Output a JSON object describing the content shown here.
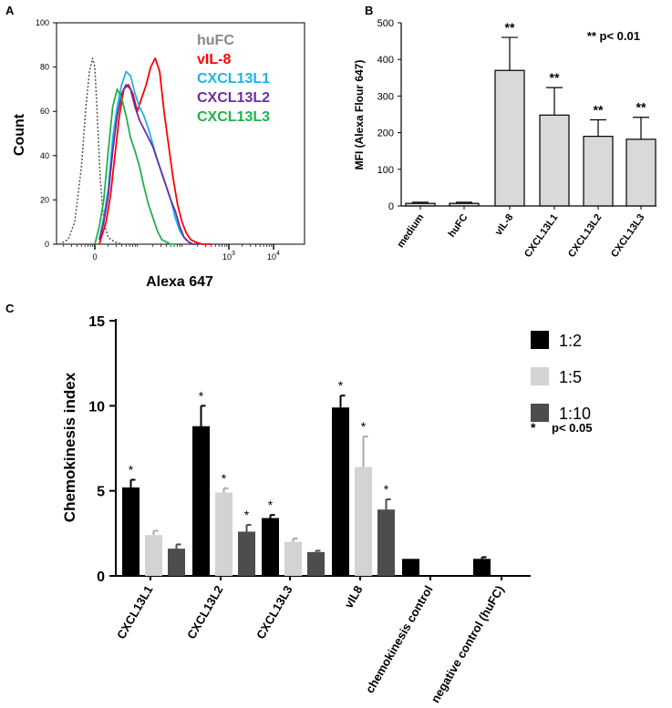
{
  "chart_data": [
    {
      "panel": "A",
      "type": "line",
      "description_kind": "flow cytometry histogram overlay",
      "xlabel": "Alexa 647",
      "ylabel": "Count",
      "y_ticks": [
        "0",
        "20",
        "40",
        "60",
        "80",
        "100"
      ],
      "x_ticks": [
        {
          "base": "0",
          "exp": ""
        },
        {
          "base": "10",
          "exp": "3"
        },
        {
          "base": "10",
          "exp": "4"
        }
      ],
      "x_ticks_data": [
        0,
        1000,
        10000
      ],
      "ylim": [
        0,
        100
      ],
      "legend": [
        "huFC",
        "vIL-8",
        "CXCL13L1",
        "CXCL13L2",
        "CXCL13L3"
      ],
      "series": [
        {
          "name": "huFC",
          "color": "#555555",
          "dashed": true,
          "x": [
            -0.8,
            -0.6,
            -0.45,
            -0.3,
            -0.2,
            -0.12,
            -0.05,
            0.0,
            0.05,
            0.12,
            0.2,
            0.3,
            0.45,
            0.6
          ],
          "y": [
            0,
            2,
            10,
            35,
            62,
            78,
            84,
            80,
            60,
            30,
            10,
            3,
            1,
            0
          ]
        },
        {
          "name": "vIL-8",
          "color": "#ff0000",
          "dashed": false,
          "x": [
            0.1,
            0.25,
            0.35,
            0.45,
            0.55,
            0.65,
            0.75,
            0.85,
            0.95,
            1.05,
            1.15,
            1.25,
            1.35,
            1.45,
            1.55,
            1.65,
            1.75,
            1.85,
            1.95,
            2.05,
            2.15,
            2.25,
            2.4,
            2.6
          ],
          "y": [
            0,
            10,
            22,
            40,
            58,
            70,
            72,
            68,
            60,
            66,
            72,
            80,
            84,
            78,
            60,
            45,
            30,
            18,
            10,
            5,
            2,
            1,
            0,
            0
          ]
        },
        {
          "name": "CXCL13L1",
          "color": "#1eb4ea",
          "dashed": false,
          "x": [
            0.1,
            0.2,
            0.3,
            0.4,
            0.5,
            0.6,
            0.7,
            0.8,
            0.9,
            1.0,
            1.1,
            1.2,
            1.3,
            1.4,
            1.5,
            1.6,
            1.7,
            1.8,
            1.9,
            2.0,
            2.1,
            2.2,
            2.3
          ],
          "y": [
            2,
            12,
            25,
            48,
            62,
            72,
            78,
            76,
            68,
            62,
            58,
            52,
            45,
            38,
            32,
            26,
            20,
            12,
            6,
            3,
            1,
            0,
            0
          ]
        },
        {
          "name": "CXCL13L2",
          "color": "#6a2ea3",
          "dashed": false,
          "x": [
            0.1,
            0.2,
            0.3,
            0.4,
            0.5,
            0.6,
            0.7,
            0.8,
            0.9,
            1.0,
            1.1,
            1.2,
            1.3,
            1.4,
            1.5,
            1.6,
            1.7,
            1.8,
            1.9,
            2.0,
            2.1,
            2.2,
            2.3
          ],
          "y": [
            2,
            10,
            22,
            42,
            58,
            68,
            72,
            70,
            62,
            56,
            52,
            48,
            44,
            38,
            32,
            26,
            20,
            15,
            8,
            3,
            1,
            0,
            0
          ]
        },
        {
          "name": "CXCL13L3",
          "color": "#22b14c",
          "dashed": false,
          "x": [
            0.0,
            0.1,
            0.2,
            0.3,
            0.4,
            0.5,
            0.6,
            0.7,
            0.8,
            0.9,
            1.0,
            1.1,
            1.2,
            1.3,
            1.4,
            1.5,
            1.6,
            1.7,
            1.8
          ],
          "y": [
            0,
            8,
            20,
            42,
            62,
            70,
            66,
            58,
            48,
            42,
            35,
            26,
            18,
            12,
            6,
            2,
            1,
            0,
            0
          ]
        }
      ]
    },
    {
      "panel": "B",
      "type": "bar",
      "ylabel": "MFI (Alexa Flour 647)",
      "ylim": [
        0,
        500
      ],
      "y_ticks": [
        "0",
        "100",
        "200",
        "300",
        "400",
        "500"
      ],
      "categories": [
        "medium",
        "huFC",
        "vIL-8",
        "CXCL13L1",
        "CXCL13L2",
        "CXCL13L3"
      ],
      "values": [
        7,
        7,
        370,
        248,
        190,
        182
      ],
      "errors": [
        3,
        3,
        90,
        75,
        45,
        60
      ],
      "significance": [
        "",
        "",
        "**",
        "**",
        "**",
        "**"
      ],
      "annotation": "** p< 0.01"
    },
    {
      "panel": "C",
      "type": "bar",
      "ylabel": "Chemokinesis index",
      "ylim": [
        0,
        15
      ],
      "y_ticks": [
        "0",
        "5",
        "10",
        "15"
      ],
      "categories": [
        "CXCL13L1",
        "CXCL13L2",
        "CXCL13L3",
        "vIL8",
        "chemokinesis control",
        "negative control (huFC)"
      ],
      "series": [
        {
          "name": "1:2",
          "color": "#000000",
          "values": [
            5.2,
            8.8,
            3.4,
            9.9,
            1.0,
            1.0
          ],
          "errors": [
            0.45,
            1.2,
            0.18,
            0.7,
            0.0,
            0.1
          ],
          "sig": [
            "*",
            "*",
            "*",
            "*",
            "",
            ""
          ]
        },
        {
          "name": "1:5",
          "color": "#d3d3d3",
          "values": [
            2.4,
            4.9,
            2.0,
            6.4,
            0,
            0
          ],
          "errors": [
            0.25,
            0.25,
            0.2,
            1.8,
            0,
            0
          ],
          "sig": [
            "",
            "*",
            "",
            "*",
            "",
            ""
          ]
        },
        {
          "name": "1:10",
          "color": "#4d4d4d",
          "values": [
            1.6,
            2.6,
            1.4,
            3.9,
            0,
            0
          ],
          "errors": [
            0.25,
            0.4,
            0.08,
            0.6,
            0,
            0
          ],
          "sig": [
            "",
            "*",
            "",
            "*",
            "",
            ""
          ]
        }
      ],
      "annotation_star": "*",
      "annotation_text": "p< 0.05"
    }
  ],
  "panel_labels": {
    "a": "A",
    "b": "B",
    "c": "C"
  }
}
